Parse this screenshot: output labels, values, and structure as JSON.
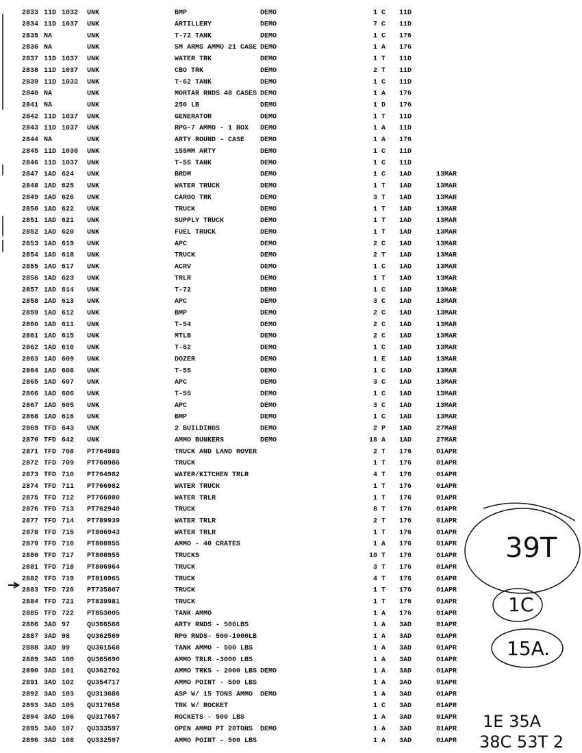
{
  "rows": [
    {
      "n": "2833",
      "unit": "11D",
      "unit_no": "1032",
      "grid": "UNK",
      "item": "BMP",
      "status": "DEMO",
      "qty": "1",
      "type": "C",
      "org": "11D"
    },
    {
      "n": "2834",
      "unit": "11D",
      "unit_no": "1037",
      "grid": "UNK",
      "item": "ARTILLERY",
      "status": "DEMO",
      "qty": "7",
      "type": "C",
      "org": "11D"
    },
    {
      "n": "2835",
      "unit": "NA",
      "grid": "UNK",
      "item": "T-72 TANK",
      "status": "DEMO",
      "qty": "1",
      "type": "C",
      "org": "176"
    },
    {
      "n": "2836",
      "unit": "NA",
      "grid": "UNK",
      "item": "SM ARMS AMMO 21 CASE",
      "status": "DEMO",
      "qty": "1",
      "type": "A",
      "org": "176"
    },
    {
      "n": "2837",
      "unit": "11D",
      "unit_no": "1037",
      "grid": "UNK",
      "item": "WATER TRK",
      "status": "DEMO",
      "qty": "1",
      "type": "T",
      "org": "11D"
    },
    {
      "n": "2838",
      "unit": "11D",
      "unit_no": "1037",
      "grid": "UNK",
      "item": "CBO TRK",
      "status": "DEMO",
      "qty": "2",
      "type": "T",
      "org": "11D"
    },
    {
      "n": "2839",
      "unit": "11D",
      "unit_no": "1032",
      "grid": "UNK",
      "item": "T-62 TANK",
      "status": "DEMO",
      "qty": "1",
      "type": "C",
      "org": "11D"
    },
    {
      "n": "2840",
      "unit": "NA",
      "grid": "UNK",
      "item": "MORTAR RNDS 48 CASES",
      "status": "DEMO",
      "qty": "1",
      "type": "A",
      "org": "176"
    },
    {
      "n": "2841",
      "unit": "NA",
      "grid": "UNK",
      "item": "250 LB",
      "status": "DEMO",
      "qty": "1",
      "type": "D",
      "org": "176"
    },
    {
      "n": "2842",
      "unit": "11D",
      "unit_no": "1037",
      "grid": "UNK",
      "item": "GENERATOR",
      "status": "DEMO",
      "qty": "1",
      "type": "T",
      "org": "11D"
    },
    {
      "n": "2843",
      "unit": "11D",
      "unit_no": "1037",
      "grid": "UNK",
      "item": "RPG-7 AMMO - 1 BOX",
      "status": "DEMO",
      "qty": "1",
      "type": "A",
      "org": "11D"
    },
    {
      "n": "2844",
      "unit": "NA",
      "grid": "UNK",
      "item": "ARTY ROUND - CASE",
      "status": "DEMO",
      "qty": "1",
      "type": "A",
      "org": "176"
    },
    {
      "n": "2845",
      "unit": "11D",
      "unit_no": "1030",
      "grid": "UNK",
      "item": "155MM ARTY",
      "status": "DEMO",
      "qty": "1",
      "type": "C",
      "org": "11D"
    },
    {
      "n": "2846",
      "unit": "11D",
      "unit_no": "1037",
      "grid": "UNK",
      "item": "T-55 TANK",
      "status": "DEMO",
      "qty": "1",
      "type": "C",
      "org": "11D"
    },
    {
      "n": "2847",
      "unit": "1AD",
      "unit_no": "624",
      "grid": "UNK",
      "item": "BRDM",
      "status": "DEMO",
      "qty": "1",
      "type": "C",
      "org": "1AD",
      "date": "13MAR"
    },
    {
      "n": "2848",
      "unit": "1AD",
      "unit_no": "625",
      "grid": "UNK",
      "item": "WATER TRUCK",
      "status": "DEMO",
      "qty": "1",
      "type": "T",
      "org": "1AD",
      "date": "13MAR"
    },
    {
      "n": "2849",
      "unit": "1AD",
      "unit_no": "626",
      "grid": "UNK",
      "item": "CARGO TRK",
      "status": "DEMO",
      "qty": "3",
      "type": "T",
      "org": "1AD",
      "date": "13MAR"
    },
    {
      "n": "2850",
      "unit": "1AD",
      "unit_no": "622",
      "grid": "UNK",
      "item": "TRUCK",
      "status": "DEMO",
      "qty": "1",
      "type": "T",
      "org": "1AD",
      "date": "13MAR"
    },
    {
      "n": "2851",
      "unit": "1AD",
      "unit_no": "621",
      "grid": "UNK",
      "item": "SUPPLY TRUCK",
      "status": "DEMO",
      "qty": "1",
      "type": "T",
      "org": "1AD",
      "date": "13MAR"
    },
    {
      "n": "2852",
      "unit": "1AD",
      "unit_no": "620",
      "grid": "UNK",
      "item": "FUEL TRUCK",
      "status": "DEMO",
      "qty": "1",
      "type": "T",
      "org": "1AD",
      "date": "13MAR"
    },
    {
      "n": "2853",
      "unit": "1AD",
      "unit_no": "619",
      "grid": "UNK",
      "item": "APC",
      "status": "DEMO",
      "qty": "2",
      "type": "C",
      "org": "1AD",
      "date": "13MAR"
    },
    {
      "n": "2854",
      "unit": "1AD",
      "unit_no": "618",
      "grid": "UNK",
      "item": "TRUCK",
      "status": "DEMO",
      "qty": "2",
      "type": "T",
      "org": "1AD",
      "date": "13MAR"
    },
    {
      "n": "2855",
      "unit": "1AD",
      "unit_no": "617",
      "grid": "UNK",
      "item": "ACRV",
      "status": "DEMO",
      "qty": "1",
      "type": "C",
      "org": "1AD",
      "date": "13MAR"
    },
    {
      "n": "2856",
      "unit": "1AD",
      "unit_no": "623",
      "grid": "UNK",
      "item": "TRLR",
      "status": "DEMO",
      "qty": "1",
      "type": "T",
      "org": "1AD",
      "date": "13MAR"
    },
    {
      "n": "2857",
      "unit": "1AD",
      "unit_no": "614",
      "grid": "UNK",
      "item": "T-72",
      "status": "DEMO",
      "qty": "1",
      "type": "C",
      "org": "1AD",
      "date": "13MAR"
    },
    {
      "n": "2858",
      "unit": "1AD",
      "unit_no": "613",
      "grid": "UNK",
      "item": "APC",
      "status": "DEMO",
      "qty": "3",
      "type": "C",
      "org": "1AD",
      "date": "13MAR"
    },
    {
      "n": "2859",
      "unit": "1AD",
      "unit_no": "612",
      "grid": "UNK",
      "item": "BMP",
      "status": "DEMO",
      "qty": "2",
      "type": "C",
      "org": "1AD",
      "date": "13MAR"
    },
    {
      "n": "2860",
      "unit": "1AD",
      "unit_no": "611",
      "grid": "UNK",
      "item": "T-54",
      "status": "DEMO",
      "qty": "2",
      "type": "C",
      "org": "1AD",
      "date": "13MAR"
    },
    {
      "n": "2861",
      "unit": "1AD",
      "unit_no": "615",
      "grid": "UNK",
      "item": "MTLB",
      "status": "DEMO",
      "qty": "2",
      "type": "C",
      "org": "1AD",
      "date": "13MAR"
    },
    {
      "n": "2862",
      "unit": "1AD",
      "unit_no": "610",
      "grid": "UNK",
      "item": "T-62",
      "status": "DEMO",
      "qty": "1",
      "type": "C",
      "org": "1AD",
      "date": "13MAR"
    },
    {
      "n": "2863",
      "unit": "1AD",
      "unit_no": "609",
      "grid": "UNK",
      "item": "DOZER",
      "status": "DEMO",
      "qty": "1",
      "type": "E",
      "org": "1AD",
      "date": "13MAR"
    },
    {
      "n": "2864",
      "unit": "1AD",
      "unit_no": "608",
      "grid": "UNK",
      "item": "T-55",
      "status": "DEMO",
      "qty": "1",
      "type": "C",
      "org": "1AD",
      "date": "13MAR"
    },
    {
      "n": "2865",
      "unit": "1AD",
      "unit_no": "607",
      "grid": "UNK",
      "item": "APC",
      "status": "DEMO",
      "qty": "3",
      "type": "C",
      "org": "1AD",
      "date": "13MAR"
    },
    {
      "n": "2866",
      "unit": "1AD",
      "unit_no": "606",
      "grid": "UNK",
      "item": "T-55",
      "status": "DEMO",
      "qty": "1",
      "type": "C",
      "org": "1AD",
      "date": "13MAR"
    },
    {
      "n": "2867",
      "unit": "1AD",
      "unit_no": "605",
      "grid": "UNK",
      "item": "APC",
      "status": "DEMO",
      "qty": "3",
      "type": "C",
      "org": "1AD",
      "date": "13MAR"
    },
    {
      "n": "2868",
      "unit": "1AD",
      "unit_no": "616",
      "grid": "UNK",
      "item": "BMP",
      "status": "DEMO",
      "qty": "1",
      "type": "C",
      "org": "1AD",
      "date": "13MAR"
    },
    {
      "n": "2869",
      "unit": "TFD",
      "unit_no": "643",
      "grid": "UNK",
      "item": "2 BUILDINGS",
      "status": "DEMO",
      "qty": "2",
      "type": "P",
      "org": "1AD",
      "date": "27MAR"
    },
    {
      "n": "2870",
      "unit": "TFD",
      "unit_no": "642",
      "grid": "UNK",
      "item": "AMMO BUNKERS",
      "status": "DEMO",
      "qty": "18",
      "type": "A",
      "org": "1AD",
      "date": "27MAR"
    },
    {
      "n": "2871",
      "unit": "TFD",
      "unit_no": "708",
      "grid": "PT764989",
      "item": "TRUCK AND LAND ROVER",
      "qty": "2",
      "type": "T",
      "org": "176",
      "date": "01APR"
    },
    {
      "n": "2872",
      "unit": "TFD",
      "unit_no": "709",
      "grid": "PT760986",
      "item": "TRUCK",
      "qty": "1",
      "type": "T",
      "org": "176",
      "date": "01APR"
    },
    {
      "n": "2873",
      "unit": "TFD",
      "unit_no": "710",
      "grid": "PT764982",
      "item": "WATER/KITCHEN TRLR",
      "qty": "4",
      "type": "T",
      "org": "176",
      "date": "01APR"
    },
    {
      "n": "2874",
      "unit": "TFD",
      "unit_no": "711",
      "grid": "PT766982",
      "item": "WATER TRUCK",
      "qty": "1",
      "type": "T",
      "org": "176",
      "date": "01APR"
    },
    {
      "n": "2875",
      "unit": "TFD",
      "unit_no": "712",
      "grid": "PT766980",
      "item": "WATER TRLR",
      "qty": "1",
      "type": "T",
      "org": "176",
      "date": "01APR"
    },
    {
      "n": "2876",
      "unit": "TFD",
      "unit_no": "713",
      "grid": "PT762940",
      "item": "TRUCK",
      "qty": "8",
      "type": "T",
      "org": "176",
      "date": "01APR"
    },
    {
      "n": "2877",
      "unit": "TFD",
      "unit_no": "714",
      "grid": "PT789939",
      "item": "WATER TRLR",
      "qty": "2",
      "type": "T",
      "org": "176",
      "date": "01APR"
    },
    {
      "n": "2878",
      "unit": "TFD",
      "unit_no": "715",
      "grid": "PT806943",
      "item": "WATER TRLR",
      "qty": "1",
      "type": "T",
      "org": "176",
      "date": "01APR"
    },
    {
      "n": "2879",
      "unit": "TFD",
      "unit_no": "716",
      "grid": "PT808955",
      "item": "AMMO - 40 CRATES",
      "qty": "1",
      "type": "A",
      "org": "176",
      "date": "01APR"
    },
    {
      "n": "2880",
      "unit": "TFD",
      "unit_no": "717",
      "grid": "PT808955",
      "item": "TRUCKS",
      "qty": "10",
      "type": "T",
      "org": "176",
      "date": "01APR"
    },
    {
      "n": "2881",
      "unit": "TFD",
      "unit_no": "718",
      "grid": "PT806964",
      "item": "TRUCK",
      "qty": "3",
      "type": "T",
      "org": "176",
      "date": "01APR"
    },
    {
      "n": "2882",
      "unit": "TFD",
      "unit_no": "719",
      "grid": "PT810965",
      "item": "TRUCK",
      "qty": "4",
      "type": "T",
      "org": "176",
      "date": "01APR"
    },
    {
      "n": "2883",
      "unit": "TFD",
      "unit_no": "720",
      "grid": "PT735807",
      "item": "TRUCK",
      "qty": "1",
      "type": "T",
      "org": "176",
      "date": "01APR"
    },
    {
      "n": "2884",
      "unit": "TFD",
      "unit_no": "721",
      "grid": "PT839981",
      "item": "TRUCK",
      "qty": "1",
      "type": "T",
      "org": "176",
      "date": "01APR"
    },
    {
      "n": "2885",
      "unit": "TFD",
      "unit_no": "722",
      "grid": "PT853005",
      "item": "TANK AMMO",
      "qty": "1",
      "type": "A",
      "org": "176",
      "date": "01APR"
    },
    {
      "n": "2886",
      "unit": "3AD",
      "unit_no": "97",
      "grid": "QU366568",
      "item": "ARTY RNDS - 500LBS",
      "qty": "1",
      "type": "A",
      "org": "3AD",
      "date": "01APR"
    },
    {
      "n": "2887",
      "unit": "3AD",
      "unit_no": "98",
      "grid": "QU362569",
      "item": "RPG RNDS- 500-1000LB",
      "qty": "1",
      "type": "A",
      "org": "3AD",
      "date": "01APR"
    },
    {
      "n": "2888",
      "unit": "3AD",
      "unit_no": "99",
      "grid": "QU361568",
      "item": "TANK AMMO - 500 LBS",
      "qty": "1",
      "type": "A",
      "org": "3AD",
      "date": "01APR"
    },
    {
      "n": "2889",
      "unit": "3AD",
      "unit_no": "100",
      "grid": "QU365690",
      "item": "AMMO TRLR -3000 LBS",
      "qty": "1",
      "type": "A",
      "org": "3AD",
      "date": "01APR"
    },
    {
      "n": "2890",
      "unit": "3AD",
      "unit_no": "101",
      "grid": "QU362702",
      "item": "AMMO TRKS - 2000 LBS",
      "status": "DEMO",
      "qty": "1",
      "type": "A",
      "org": "3AD",
      "date": "01APR"
    },
    {
      "n": "2891",
      "unit": "3AD",
      "unit_no": "102",
      "grid": "QU354717",
      "item": "AMMO POINT - 500 LBS",
      "qty": "1",
      "type": "A",
      "org": "3AD",
      "date": "01APR"
    },
    {
      "n": "2892",
      "unit": "3AD",
      "unit_no": "103",
      "grid": "QU313686",
      "item": "ASP W/ 15 TONS AMMO",
      "status": "DEMO",
      "qty": "1",
      "type": "A",
      "org": "3AD",
      "date": "01APR"
    },
    {
      "n": "2893",
      "unit": "3AD",
      "unit_no": "105",
      "grid": "QU317658",
      "item": "TRK W/ ROCKET",
      "qty": "1",
      "type": "C",
      "org": "3AD",
      "date": "01APR"
    },
    {
      "n": "2894",
      "unit": "3AD",
      "unit_no": "106",
      "grid": "QU317657",
      "item": "ROCKETS - 500 LBS",
      "qty": "1",
      "type": "A",
      "org": "3AD",
      "date": "01APR"
    },
    {
      "n": "2895",
      "unit": "3AD",
      "unit_no": "107",
      "grid": "QU333597",
      "item": "OPEN AMMO PT 20TONS",
      "status": "DEMO",
      "qty": "1",
      "type": "A",
      "org": "3AD",
      "date": "01APR"
    },
    {
      "n": "2896",
      "unit": "3AD",
      "unit_no": "108",
      "grid": "QU332597",
      "item": "AMMO POINT - 500 LBS",
      "qty": "1",
      "type": "A",
      "org": "3AD",
      "date": "01APR"
    }
  ],
  "handwriting": {
    "circle_1": "39T",
    "circle_2": "1C",
    "circle_3": "15A.",
    "line_1": "1E 35A",
    "line_2": "38C 53T 2"
  }
}
